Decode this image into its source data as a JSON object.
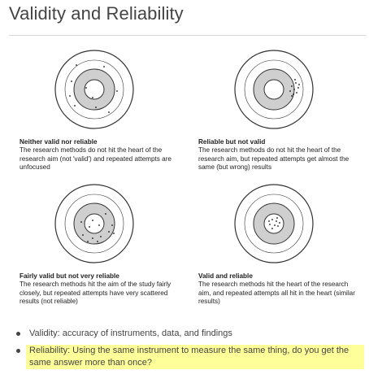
{
  "title": "Validity and Reliability",
  "targets": [
    {
      "title": "Neither valid nor reliable",
      "text": "The research methods do not hit the heart of the research aim (not 'valid') and repeated attempts are unfocused",
      "dots": [
        [
          -28,
          -10
        ],
        [
          -24,
          20
        ],
        [
          -10,
          -2
        ],
        [
          -22,
          -30
        ],
        [
          12,
          -28
        ],
        [
          28,
          2
        ],
        [
          18,
          28
        ],
        [
          -2,
          10
        ],
        [
          2,
          22
        ],
        [
          -30,
          8
        ]
      ]
    },
    {
      "title": "Reliable but not valid",
      "text": "The research methods do not hit the heart of the research aim, but repeated attempts get almost the same (but wrong) results",
      "dots": [
        [
          22,
          -4
        ],
        [
          27,
          -8
        ],
        [
          25,
          0
        ],
        [
          20,
          2
        ],
        [
          28,
          4
        ],
        [
          24,
          6
        ],
        [
          30,
          -2
        ],
        [
          22,
          8
        ],
        [
          26,
          -12
        ],
        [
          31,
          -6
        ]
      ]
    },
    {
      "title": "Fairly valid but not very reliable",
      "text": "The research methods hit the aim of the study fairly closely, but repeated attempts have very scattered results (not reliable)",
      "dots": [
        [
          -2,
          -4
        ],
        [
          6,
          2
        ],
        [
          -6,
          4
        ],
        [
          -14,
          14
        ],
        [
          -2,
          18
        ],
        [
          8,
          16
        ],
        [
          18,
          10
        ],
        [
          22,
          2
        ],
        [
          -16,
          -2
        ],
        [
          14,
          -12
        ],
        [
          4,
          22
        ],
        [
          -8,
          22
        ],
        [
          24,
          12
        ]
      ]
    },
    {
      "title": "Valid and reliable",
      "text": "The research methods hit the heart of the research aim, and repeated attempts all hit in the heart (similar results)",
      "dots": [
        [
          -2,
          -5
        ],
        [
          3,
          -3
        ],
        [
          -5,
          1
        ],
        [
          1,
          2
        ],
        [
          5,
          3
        ],
        [
          -2,
          6
        ],
        [
          4,
          -7
        ],
        [
          -6,
          -3
        ],
        [
          7,
          -1
        ]
      ]
    }
  ],
  "bullets": [
    {
      "text": "Validity: accuracy of instruments, data, and findings",
      "highlight": false
    },
    {
      "text": "Reliability: Using the same instrument to measure the same thing, do you get the same answer more than once?",
      "highlight": true
    }
  ]
}
